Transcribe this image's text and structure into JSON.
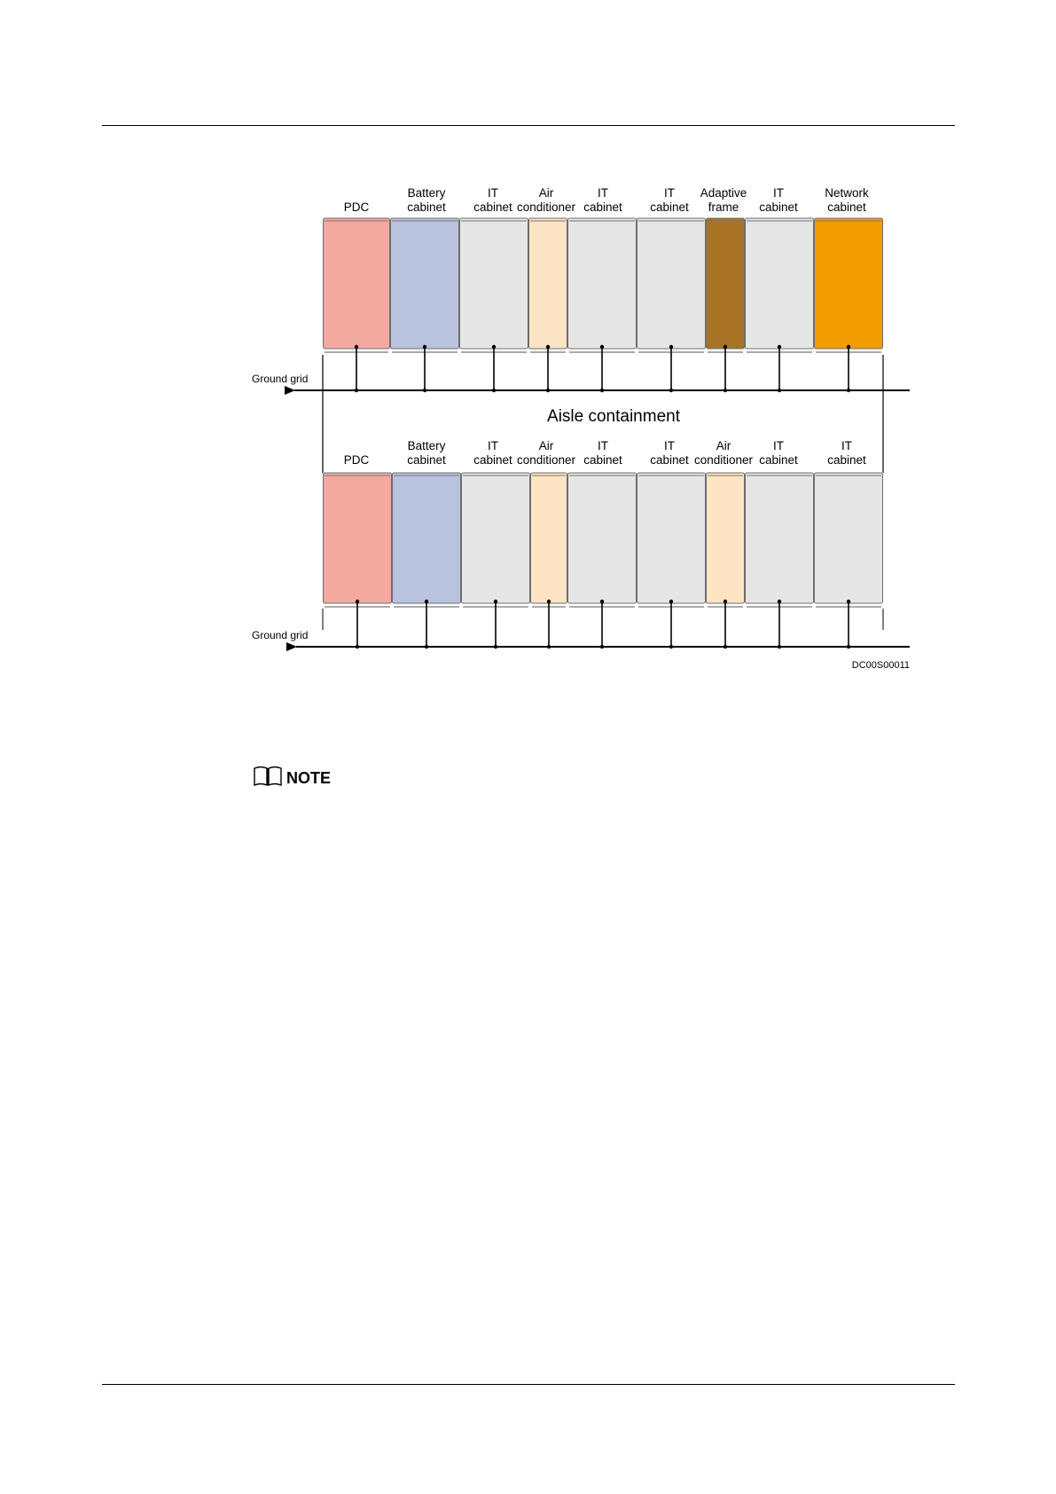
{
  "diagram": {
    "aisle_label": "Aisle containment",
    "ground_grid_label": "Ground grid",
    "figure_id": "DC00S00011",
    "colors": {
      "pdc": "#f4a9a0",
      "battery": "#b9c3de",
      "it": "#e6e6e6",
      "air_conditioner": "#fce4c4",
      "adaptive_frame": "#a87325",
      "network": "#f39c00"
    },
    "top_row": [
      {
        "label": [
          "PDC"
        ],
        "color": "pdc"
      },
      {
        "label": [
          "Battery",
          "cabinet"
        ],
        "color": "battery"
      },
      {
        "label": [
          "IT",
          "cabinet"
        ],
        "color": "it"
      },
      {
        "label": [
          "Air",
          "conditioner"
        ],
        "color": "air_conditioner"
      },
      {
        "label": [
          "IT",
          "cabinet"
        ],
        "color": "it"
      },
      {
        "label": [
          "IT",
          "cabinet"
        ],
        "color": "it"
      },
      {
        "label": [
          "Adaptive",
          "frame"
        ],
        "color": "adaptive_frame"
      },
      {
        "label": [
          "IT",
          "cabinet"
        ],
        "color": "it"
      },
      {
        "label": [
          "Network",
          "cabinet"
        ],
        "color": "network"
      }
    ],
    "bottom_row": [
      {
        "label": [
          "PDC"
        ],
        "color": "pdc"
      },
      {
        "label": [
          "Battery",
          "cabinet"
        ],
        "color": "battery"
      },
      {
        "label": [
          "IT",
          "cabinet"
        ],
        "color": "it"
      },
      {
        "label": [
          "Air",
          "conditioner"
        ],
        "color": "air_conditioner"
      },
      {
        "label": [
          "IT",
          "cabinet"
        ],
        "color": "it"
      },
      {
        "label": [
          "IT",
          "cabinet"
        ],
        "color": "it"
      },
      {
        "label": [
          "Air",
          "conditioner"
        ],
        "color": "air_conditioner"
      },
      {
        "label": [
          "IT",
          "cabinet"
        ],
        "color": "it"
      },
      {
        "label": [
          "IT",
          "cabinet"
        ],
        "color": "it"
      }
    ]
  },
  "note": {
    "icon": "book-icon",
    "label": "NOTE"
  }
}
